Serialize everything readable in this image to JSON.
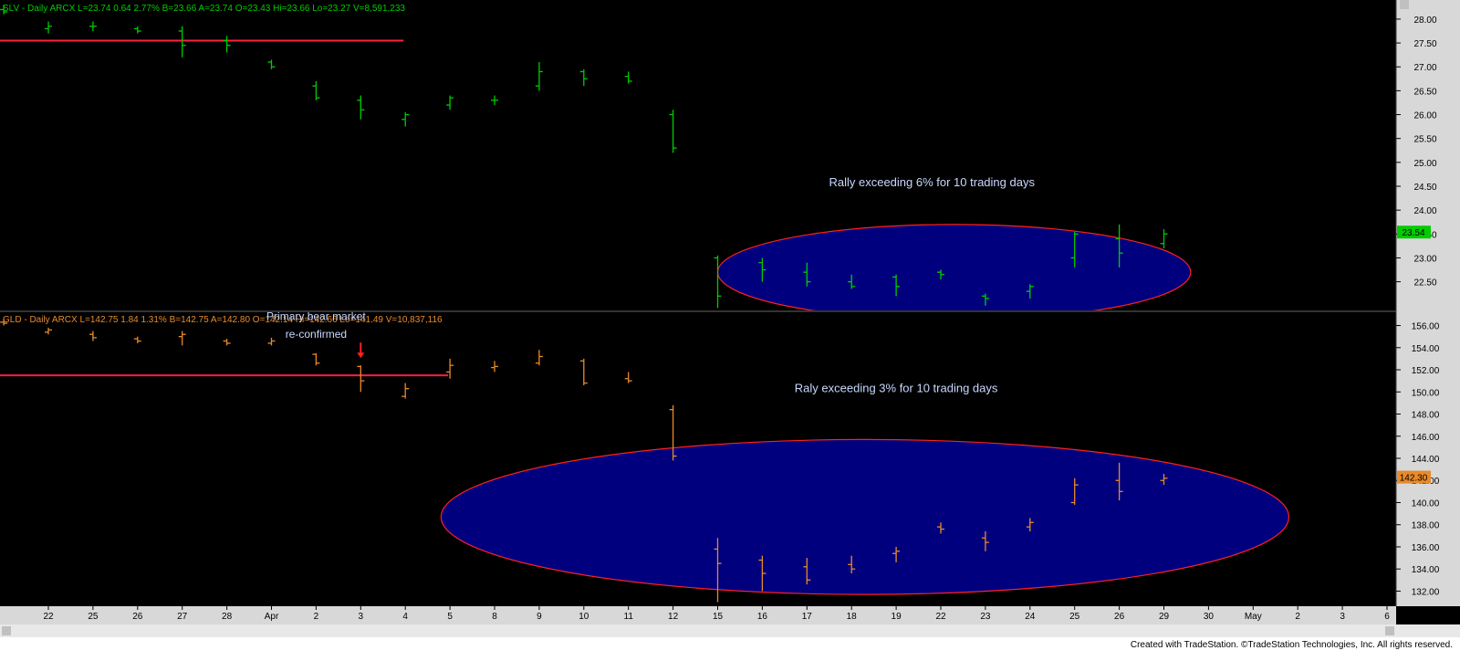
{
  "colors": {
    "background": "#000000",
    "up_panel_series": "#00cc00",
    "lower_panel_series": "#e88a2a",
    "header_label": "#00cc00",
    "gld_header_label": "#e88a2a",
    "ellipse_fill": "#00007f",
    "ellipse_stroke": "#ff2020",
    "hline": "#ff2040",
    "annotation_text": "#c8d8ff",
    "axis_text": "#000000",
    "axis_bg": "#d8d8d8",
    "last_price_slv": "#00cc00",
    "last_price_gld": "#e88a2a"
  },
  "footer": {
    "credit": "Created with TradeStation. ©TradeStation Technologies, Inc. All rights reserved."
  },
  "chart_data": [
    {
      "type": "bar",
      "panel": "top",
      "header": "SLV - Daily  ARCX  L=23.74  0.64  2.77%  B=23.66  A=23.74  O=23.43  Hi=23.66  Lo=23.27  V=8,591,233",
      "ylim": [
        21.9,
        28.4
      ],
      "yticks": [
        22.5,
        23.0,
        23.5,
        24.0,
        24.5,
        25.0,
        25.5,
        26.0,
        26.5,
        27.0,
        27.5,
        28.0
      ],
      "ytick_labels": [
        "22.50",
        "23.00",
        "23.50",
        "24.00",
        "24.50",
        "25.00",
        "25.50",
        "26.00",
        "26.50",
        "27.00",
        "27.50",
        "28.00"
      ],
      "last_price": "23.54",
      "last_price_value": 23.54,
      "hline": {
        "value": 27.55,
        "x_start": -1,
        "x_end": 8
      },
      "annotation": {
        "text": "Rally exceeding 6% for 10 trading days",
        "x": 19.8,
        "y": 24.5
      },
      "ellipse": {
        "cx": 20.3,
        "cy": 22.7,
        "rx": 5.3,
        "ry": 1.0
      },
      "bars": [
        {
          "x": -1,
          "o": 28.2,
          "h": 28.3,
          "l": 28.1,
          "c": 28.15
        },
        {
          "x": 0,
          "o": 27.8,
          "h": 27.95,
          "l": 27.7,
          "c": 27.85
        },
        {
          "x": 1,
          "o": 27.85,
          "h": 27.95,
          "l": 27.75,
          "c": 27.85
        },
        {
          "x": 2,
          "o": 27.8,
          "h": 27.85,
          "l": 27.7,
          "c": 27.75
        },
        {
          "x": 3,
          "o": 27.75,
          "h": 27.85,
          "l": 27.2,
          "c": 27.45
        },
        {
          "x": 4,
          "o": 27.55,
          "h": 27.65,
          "l": 27.3,
          "c": 27.45
        },
        {
          "x": 5,
          "o": 27.1,
          "h": 27.15,
          "l": 26.95,
          "c": 27.0
        },
        {
          "x": 6,
          "o": 26.6,
          "h": 26.7,
          "l": 26.3,
          "c": 26.35
        },
        {
          "x": 7,
          "o": 26.3,
          "h": 26.4,
          "l": 25.9,
          "c": 26.1
        },
        {
          "x": 8,
          "o": 25.9,
          "h": 26.05,
          "l": 25.75,
          "c": 26.0
        },
        {
          "x": 9,
          "o": 26.2,
          "h": 26.4,
          "l": 26.1,
          "c": 26.35
        },
        {
          "x": 10,
          "o": 26.3,
          "h": 26.4,
          "l": 26.2,
          "c": 26.3
        },
        {
          "x": 11,
          "o": 26.6,
          "h": 27.1,
          "l": 26.5,
          "c": 26.9
        },
        {
          "x": 12,
          "o": 26.9,
          "h": 26.95,
          "l": 26.6,
          "c": 26.75
        },
        {
          "x": 13,
          "o": 26.8,
          "h": 26.9,
          "l": 26.65,
          "c": 26.7
        },
        {
          "x": 14,
          "o": 26.0,
          "h": 26.1,
          "l": 25.2,
          "c": 25.3
        },
        {
          "x": 15,
          "o": 23.0,
          "h": 23.05,
          "l": 21.95,
          "c": 22.2
        },
        {
          "x": 16,
          "o": 22.9,
          "h": 23.0,
          "l": 22.5,
          "c": 22.75
        },
        {
          "x": 17,
          "o": 22.7,
          "h": 22.9,
          "l": 22.4,
          "c": 22.5
        },
        {
          "x": 18,
          "o": 22.5,
          "h": 22.65,
          "l": 22.35,
          "c": 22.4
        },
        {
          "x": 19,
          "o": 22.6,
          "h": 22.65,
          "l": 22.2,
          "c": 22.4
        },
        {
          "x": 20,
          "o": 22.7,
          "h": 22.75,
          "l": 22.55,
          "c": 22.65
        },
        {
          "x": 21,
          "o": 22.2,
          "h": 22.25,
          "l": 22.0,
          "c": 22.15
        },
        {
          "x": 22,
          "o": 22.3,
          "h": 22.45,
          "l": 22.15,
          "c": 22.4
        },
        {
          "x": 23,
          "o": 23.0,
          "h": 23.55,
          "l": 22.8,
          "c": 23.5
        },
        {
          "x": 24,
          "o": 23.4,
          "h": 23.7,
          "l": 22.8,
          "c": 23.1
        },
        {
          "x": 25,
          "o": 23.3,
          "h": 23.6,
          "l": 23.2,
          "c": 23.5
        }
      ]
    },
    {
      "type": "bar",
      "panel": "bottom",
      "header": "GLD - Daily  ARCX  L=142.75  1.84  1.31%  B=142.75  A=142.80  O=142.14  Hi=142.66  Lo=141.49  V=10,837,116",
      "ylim": [
        130.8,
        157.2
      ],
      "yticks": [
        132,
        134,
        136,
        138,
        140,
        142,
        144,
        146,
        148,
        150,
        152,
        154,
        156
      ],
      "ytick_labels": [
        "132.00",
        "134.00",
        "136.00",
        "138.00",
        "140.00",
        "142.00",
        "144.00",
        "146.00",
        "148.00",
        "150.00",
        "152.00",
        "154.00",
        "156.00"
      ],
      "last_price": "142.30",
      "last_price_value": 142.3,
      "hline": {
        "value": 151.5,
        "x_start": -1,
        "x_end": 9
      },
      "annotation": {
        "text": "Raly exceeding 3% for 10 trading days",
        "x": 19.0,
        "y": 150.0
      },
      "annotation2": {
        "text": "re-confirmed",
        "x": 6.0,
        "y": 155.2
      },
      "annotation2b": {
        "text": "Primary bear market",
        "x": 6.0,
        "y": 157.0
      },
      "arrow": {
        "x": 7,
        "y": 153.3
      },
      "ellipse": {
        "cx": 18.3,
        "cy": 138.7,
        "rx": 9.5,
        "ry": 7.0
      },
      "bars": [
        {
          "x": -1,
          "o": 156.3,
          "h": 156.6,
          "l": 156.0,
          "c": 156.2
        },
        {
          "x": 0,
          "o": 155.4,
          "h": 155.8,
          "l": 155.2,
          "c": 155.6
        },
        {
          "x": 1,
          "o": 155.2,
          "h": 155.5,
          "l": 154.6,
          "c": 154.9
        },
        {
          "x": 2,
          "o": 154.8,
          "h": 155.0,
          "l": 154.4,
          "c": 154.6
        },
        {
          "x": 3,
          "o": 155.0,
          "h": 155.5,
          "l": 154.2,
          "c": 155.2
        },
        {
          "x": 4,
          "o": 154.6,
          "h": 154.8,
          "l": 154.2,
          "c": 154.4
        },
        {
          "x": 5,
          "o": 154.4,
          "h": 154.9,
          "l": 154.2,
          "c": 154.6
        },
        {
          "x": 6,
          "o": 153.4,
          "h": 153.5,
          "l": 152.4,
          "c": 152.6
        },
        {
          "x": 7,
          "o": 152.3,
          "h": 152.4,
          "l": 150.0,
          "c": 151.0
        },
        {
          "x": 8,
          "o": 149.6,
          "h": 150.8,
          "l": 149.4,
          "c": 150.3
        },
        {
          "x": 9,
          "o": 151.8,
          "h": 153.0,
          "l": 151.2,
          "c": 152.4
        },
        {
          "x": 10,
          "o": 152.2,
          "h": 152.8,
          "l": 151.8,
          "c": 152.3
        },
        {
          "x": 11,
          "o": 152.6,
          "h": 153.8,
          "l": 152.4,
          "c": 153.2
        },
        {
          "x": 12,
          "o": 152.8,
          "h": 153.0,
          "l": 150.6,
          "c": 150.8
        },
        {
          "x": 13,
          "o": 151.2,
          "h": 151.8,
          "l": 150.8,
          "c": 151.0
        },
        {
          "x": 14,
          "o": 148.4,
          "h": 148.8,
          "l": 143.8,
          "c": 144.2
        },
        {
          "x": 15,
          "o": 135.8,
          "h": 136.8,
          "l": 131.0,
          "c": 134.5
        },
        {
          "x": 16,
          "o": 134.8,
          "h": 135.2,
          "l": 132.0,
          "c": 133.6
        },
        {
          "x": 17,
          "o": 134.2,
          "h": 135.0,
          "l": 132.6,
          "c": 133.0
        },
        {
          "x": 18,
          "o": 134.4,
          "h": 135.2,
          "l": 133.6,
          "c": 134.0
        },
        {
          "x": 19,
          "o": 135.4,
          "h": 136.0,
          "l": 134.6,
          "c": 135.6
        },
        {
          "x": 20,
          "o": 137.8,
          "h": 138.2,
          "l": 137.2,
          "c": 137.6
        },
        {
          "x": 21,
          "o": 136.8,
          "h": 137.4,
          "l": 135.6,
          "c": 136.4
        },
        {
          "x": 22,
          "o": 137.8,
          "h": 138.6,
          "l": 137.4,
          "c": 138.2
        },
        {
          "x": 23,
          "o": 140.0,
          "h": 142.2,
          "l": 139.8,
          "c": 141.6
        },
        {
          "x": 24,
          "o": 142.0,
          "h": 143.6,
          "l": 140.2,
          "c": 141.0
        },
        {
          "x": 25,
          "o": 142.0,
          "h": 142.6,
          "l": 141.6,
          "c": 142.2
        }
      ]
    }
  ],
  "x_axis": {
    "labels": [
      "22",
      "25",
      "26",
      "27",
      "28",
      "Apr",
      "2",
      "3",
      "4",
      "5",
      "8",
      "9",
      "10",
      "11",
      "12",
      "15",
      "16",
      "17",
      "18",
      "19",
      "22",
      "23",
      "24",
      "25",
      "26",
      "29",
      "30",
      "May",
      "2",
      "3",
      "6"
    ],
    "label_x": [
      0,
      1,
      2,
      3,
      4,
      5,
      6,
      7,
      8,
      9,
      10,
      11,
      12,
      13,
      14,
      15,
      16,
      17,
      18,
      19,
      20,
      21,
      22,
      23,
      24,
      25,
      26,
      27,
      28,
      29,
      30
    ]
  }
}
